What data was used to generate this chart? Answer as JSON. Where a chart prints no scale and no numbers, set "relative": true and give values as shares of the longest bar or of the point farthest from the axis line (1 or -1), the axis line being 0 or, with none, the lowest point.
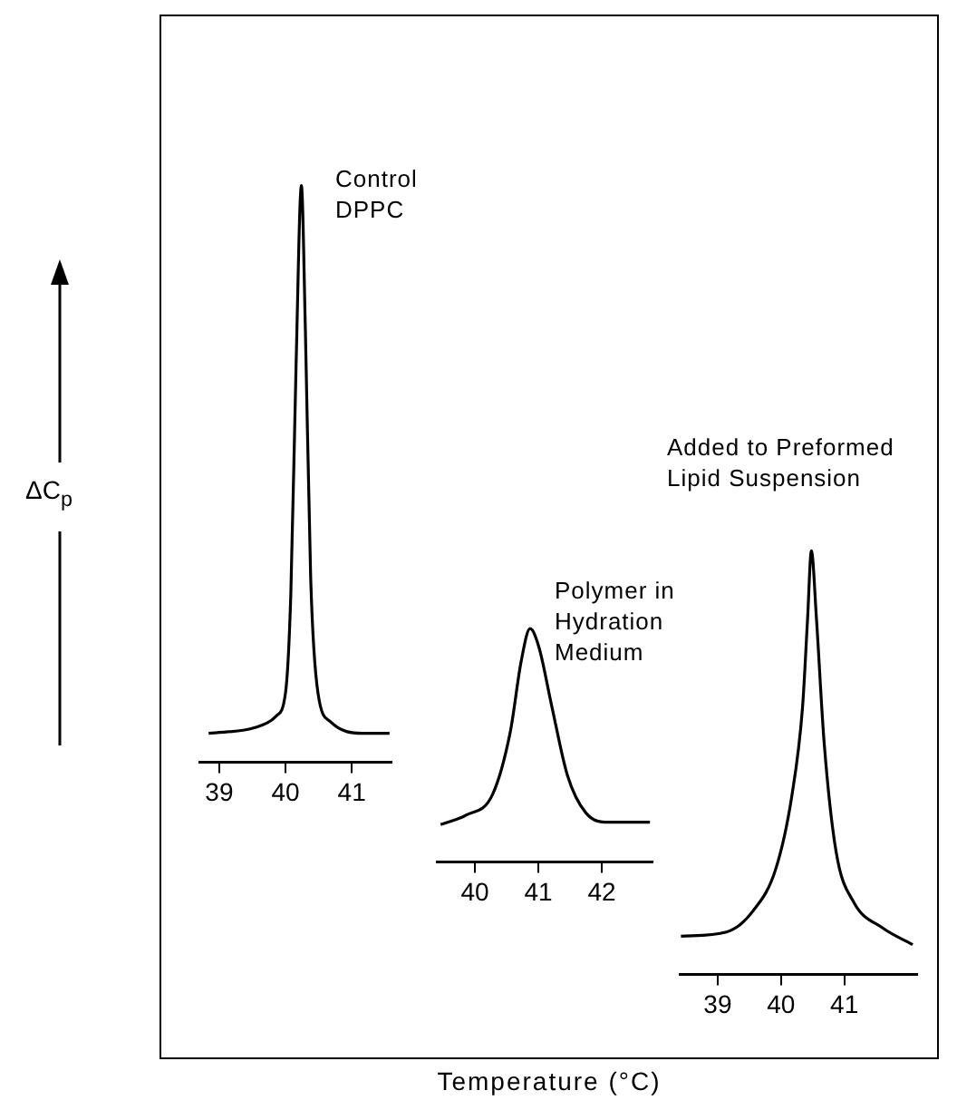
{
  "chart_data": [
    {
      "type": "line",
      "relative": true,
      "ylabel": "ΔC$_{p}$",
      "annotations": [
        "Control\nDPPC"
      ],
      "x": [
        38.84,
        39.54,
        39.86,
        40.0,
        40.08,
        40.16,
        40.24,
        40.3,
        40.38,
        40.49,
        40.68,
        41.16,
        41.57
      ],
      "values": [
        0.05,
        0.06,
        0.08,
        0.12,
        0.29,
        0.69,
        1,
        0.75,
        0.32,
        0.12,
        0.07,
        0.05,
        0.05
      ],
      "color": "#000000",
      "xlim": [
        38.7,
        41.6
      ],
      "xticks": [
        39,
        40,
        41
      ],
      "tick_labels": "x",
      "grid": false,
      "marker": "none"
    },
    {
      "type": "line",
      "relative": true,
      "xlabel": "Temperature (°C)",
      "annotations": [
        "Polymer in\nHydration\nMedium"
      ],
      "x": [
        39.46,
        39.86,
        40.28,
        40.56,
        40.73,
        40.87,
        41.01,
        41.21,
        41.46,
        41.75,
        42.11,
        42.76
      ],
      "values": [
        0.16,
        0.2,
        0.29,
        0.56,
        0.86,
        1,
        0.92,
        0.67,
        0.37,
        0.21,
        0.17,
        0.17
      ],
      "color": "#000000",
      "xlim": [
        39.4,
        42.8
      ],
      "xticks": [
        40,
        41,
        42
      ],
      "tick_labels": "x",
      "grid": false,
      "marker": "none"
    },
    {
      "type": "line",
      "relative": true,
      "annotations": [
        "Added to Preformed\nLipid Suspension"
      ],
      "x": [
        38.42,
        39.14,
        39.56,
        39.92,
        40.17,
        40.34,
        40.42,
        40.48,
        40.56,
        40.68,
        40.87,
        41.15,
        41.6,
        42.08
      ],
      "values": [
        0.09,
        0.1,
        0.15,
        0.25,
        0.42,
        0.63,
        0.84,
        1,
        0.84,
        0.55,
        0.29,
        0.17,
        0.11,
        0.07
      ],
      "color": "#000000",
      "xlim": [
        38.4,
        42.15
      ],
      "xticks": [
        39,
        40,
        41
      ],
      "tick_labels": "x",
      "grid": false,
      "marker": "none"
    }
  ]
}
